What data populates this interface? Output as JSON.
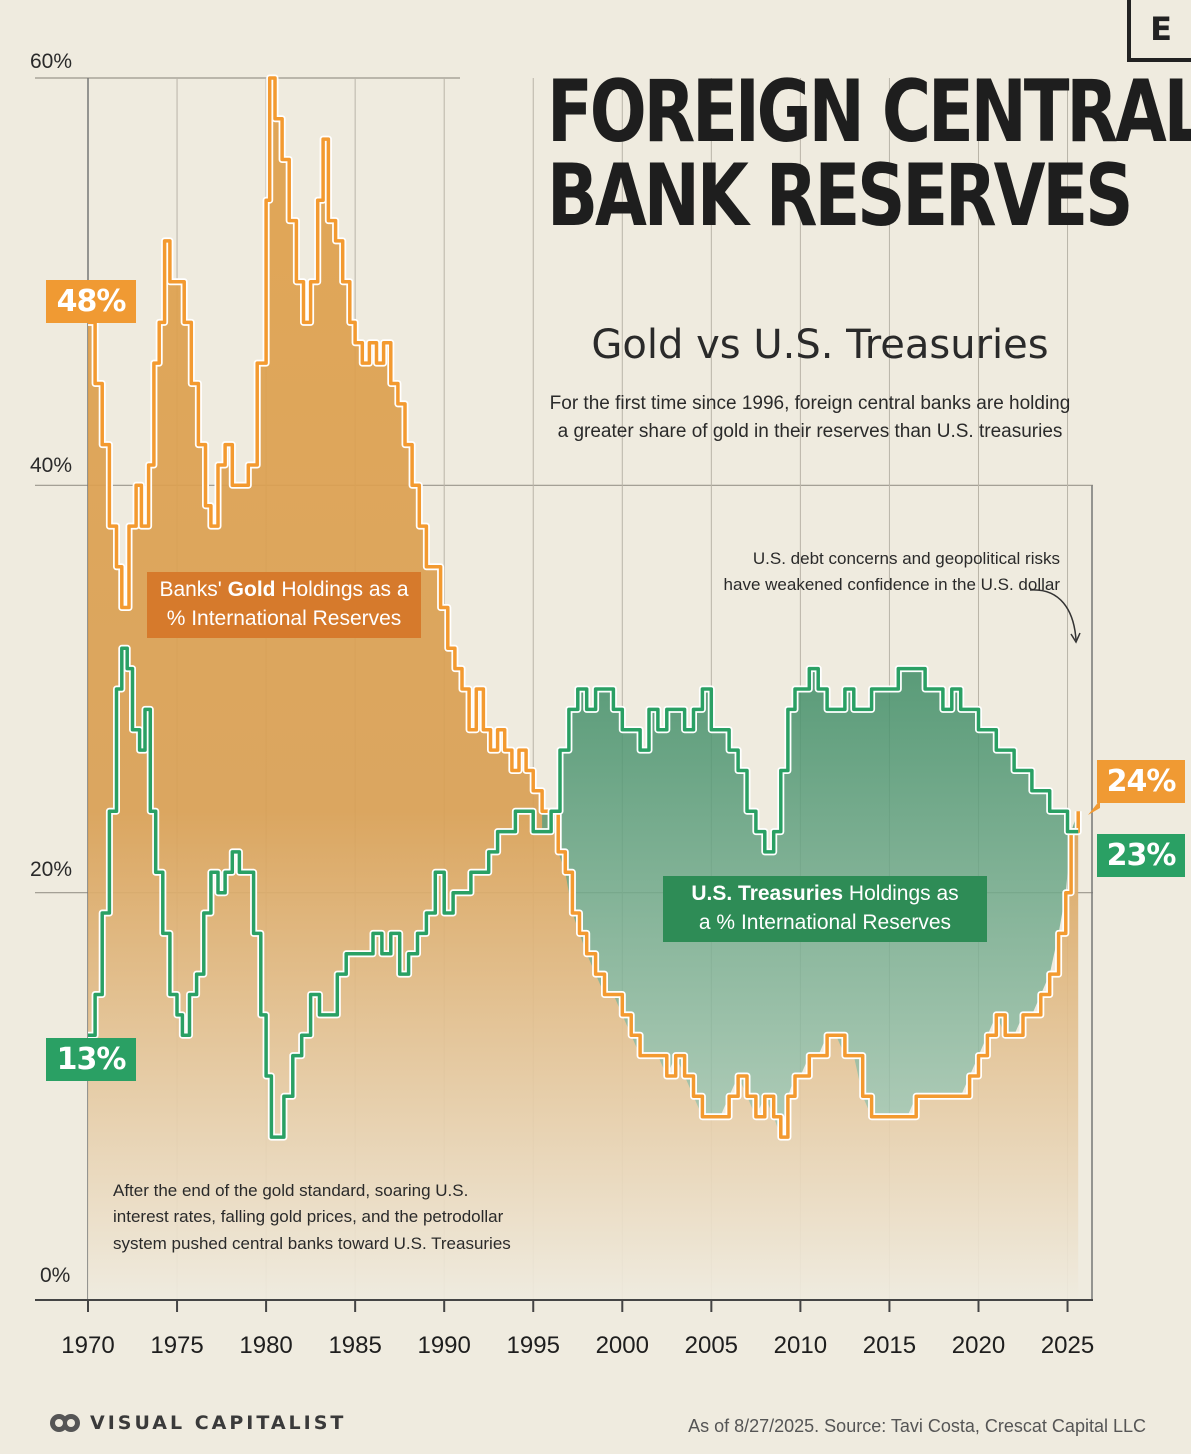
{
  "header": {
    "brand_mark": "E",
    "title_line1": "FOREIGN CENTRAL",
    "title_line2": "BANK RESERVES",
    "subtitle": "Gold vs U.S. Treasuries",
    "description_line1": "For the first time since 1996, foreign central banks are holding",
    "description_line2": "a greater share of gold in their reserves than U.S. treasuries"
  },
  "annotations": {
    "top_line1": "U.S. debt concerns and geopolitical risks",
    "top_line2": "have weakened confidence in the U.S. dollar",
    "bottom_line1": "After the end of the gold standard, soaring U.S.",
    "bottom_line2": "interest rates, falling gold prices, and the petrodollar",
    "bottom_line3": "system pushed central banks toward U.S. Treasuries"
  },
  "labels": {
    "gold_pre": "Banks' ",
    "gold_bold": "Gold",
    "gold_post": " Holdings as a",
    "gold_line2": "% International Reserves",
    "treas_bold": "U.S. Treasuries",
    "treas_post": " Holdings as",
    "treas_line2": "a % International Reserves"
  },
  "badges": {
    "gold_start": "48%",
    "treas_start": "13%",
    "gold_end": "24%",
    "treas_end": "23%"
  },
  "footer": {
    "brand": "VISUAL CAPITALIST",
    "source": "As of 8/27/2025. Source: Tavi Costa, Crescat Capital LLC"
  },
  "colors": {
    "gold": "#f39a30",
    "treasuries": "#2aa064",
    "gold_fill": "#d39a4e",
    "treasuries_fill": "#5f9f7e",
    "background": "#efebdf"
  },
  "chart_data": {
    "type": "line",
    "title": "FOREIGN CENTRAL BANK RESERVES",
    "subtitle": "Gold vs U.S. Treasuries",
    "xlim": [
      1970,
      2025.7
    ],
    "ylim": [
      0,
      60
    ],
    "xticks": [
      "1970",
      "1975",
      "1980",
      "1985",
      "1990",
      "1995",
      "2000",
      "2005",
      "2010",
      "2015",
      "2020",
      "2025"
    ],
    "yticks": [
      "0%",
      "20%",
      "40%",
      "60%"
    ],
    "grid": true,
    "series": [
      {
        "name": "Banks' Gold Holdings as a % International Reserves",
        "color": "#f39a30",
        "points": [
          [
            1970,
            48
          ],
          [
            1970.4,
            45
          ],
          [
            1970.8,
            42
          ],
          [
            1971.2,
            38
          ],
          [
            1971.6,
            36
          ],
          [
            1971.9,
            34
          ],
          [
            1972.3,
            38
          ],
          [
            1972.7,
            40
          ],
          [
            1973.0,
            38
          ],
          [
            1973.4,
            41
          ],
          [
            1973.7,
            46
          ],
          [
            1974.0,
            48
          ],
          [
            1974.3,
            52
          ],
          [
            1974.6,
            50
          ],
          [
            1975.0,
            50
          ],
          [
            1975.4,
            48
          ],
          [
            1975.8,
            45
          ],
          [
            1976.2,
            42
          ],
          [
            1976.6,
            39
          ],
          [
            1976.9,
            38
          ],
          [
            1977.3,
            41
          ],
          [
            1977.7,
            42
          ],
          [
            1978.1,
            40
          ],
          [
            1978.5,
            40
          ],
          [
            1979.0,
            41
          ],
          [
            1979.5,
            46
          ],
          [
            1980.0,
            54
          ],
          [
            1980.2,
            60
          ],
          [
            1980.5,
            58
          ],
          [
            1980.9,
            56
          ],
          [
            1981.3,
            53
          ],
          [
            1981.7,
            50
          ],
          [
            1982.1,
            48
          ],
          [
            1982.5,
            50
          ],
          [
            1982.9,
            54
          ],
          [
            1983.2,
            57
          ],
          [
            1983.5,
            53
          ],
          [
            1983.9,
            52
          ],
          [
            1984.3,
            50
          ],
          [
            1984.7,
            48
          ],
          [
            1985.0,
            47
          ],
          [
            1985.4,
            46
          ],
          [
            1985.8,
            47
          ],
          [
            1986.2,
            46
          ],
          [
            1986.6,
            47
          ],
          [
            1987.0,
            45
          ],
          [
            1987.4,
            44
          ],
          [
            1987.8,
            42
          ],
          [
            1988.2,
            40
          ],
          [
            1988.6,
            38
          ],
          [
            1989.0,
            36
          ],
          [
            1989.4,
            36
          ],
          [
            1989.8,
            34
          ],
          [
            1990.2,
            32
          ],
          [
            1990.6,
            31
          ],
          [
            1991.0,
            30
          ],
          [
            1991.4,
            28
          ],
          [
            1991.8,
            30
          ],
          [
            1992.2,
            28
          ],
          [
            1992.6,
            27
          ],
          [
            1993.0,
            28
          ],
          [
            1993.4,
            27
          ],
          [
            1993.8,
            26
          ],
          [
            1994.2,
            27
          ],
          [
            1994.6,
            26
          ],
          [
            1995.0,
            25
          ],
          [
            1995.5,
            24
          ],
          [
            1996.0,
            24
          ],
          [
            1996.4,
            22
          ],
          [
            1996.8,
            21
          ],
          [
            1997.2,
            19
          ],
          [
            1997.6,
            18
          ],
          [
            1998.0,
            17
          ],
          [
            1998.5,
            16
          ],
          [
            1999.0,
            15
          ],
          [
            1999.5,
            15
          ],
          [
            2000.0,
            14
          ],
          [
            2000.5,
            13
          ],
          [
            2001.0,
            12
          ],
          [
            2001.5,
            12
          ],
          [
            2002.0,
            12
          ],
          [
            2002.5,
            11
          ],
          [
            2003.0,
            12
          ],
          [
            2003.5,
            11
          ],
          [
            2004.0,
            10
          ],
          [
            2004.5,
            9
          ],
          [
            2005.0,
            9
          ],
          [
            2005.5,
            9
          ],
          [
            2006.0,
            10
          ],
          [
            2006.5,
            11
          ],
          [
            2007.0,
            10
          ],
          [
            2007.5,
            9
          ],
          [
            2008.0,
            10
          ],
          [
            2008.5,
            9
          ],
          [
            2008.9,
            8
          ],
          [
            2009.3,
            10
          ],
          [
            2009.7,
            11
          ],
          [
            2010.0,
            11
          ],
          [
            2010.5,
            12
          ],
          [
            2011.0,
            12
          ],
          [
            2011.5,
            13
          ],
          [
            2012.0,
            13
          ],
          [
            2012.5,
            12
          ],
          [
            2013.0,
            12
          ],
          [
            2013.5,
            10
          ],
          [
            2014.0,
            9
          ],
          [
            2014.5,
            9
          ],
          [
            2015.0,
            9
          ],
          [
            2015.5,
            9
          ],
          [
            2016.0,
            9
          ],
          [
            2016.5,
            10
          ],
          [
            2017.0,
            10
          ],
          [
            2017.5,
            10
          ],
          [
            2018.0,
            10
          ],
          [
            2018.5,
            10
          ],
          [
            2019.0,
            10
          ],
          [
            2019.5,
            11
          ],
          [
            2020.0,
            12
          ],
          [
            2020.5,
            13
          ],
          [
            2021.0,
            14
          ],
          [
            2021.5,
            13
          ],
          [
            2022.0,
            13
          ],
          [
            2022.5,
            14
          ],
          [
            2023.0,
            14
          ],
          [
            2023.5,
            15
          ],
          [
            2024.0,
            16
          ],
          [
            2024.5,
            18
          ],
          [
            2024.9,
            20
          ],
          [
            2025.2,
            23
          ],
          [
            2025.6,
            24
          ]
        ]
      },
      {
        "name": "U.S. Treasuries Holdings as a % International Reserves",
        "color": "#2aa064",
        "points": [
          [
            1970,
            13
          ],
          [
            1970.4,
            15
          ],
          [
            1970.8,
            19
          ],
          [
            1971.2,
            24
          ],
          [
            1971.6,
            30
          ],
          [
            1971.9,
            32
          ],
          [
            1972.2,
            31
          ],
          [
            1972.5,
            28
          ],
          [
            1972.9,
            27
          ],
          [
            1973.2,
            29
          ],
          [
            1973.5,
            24
          ],
          [
            1973.8,
            21
          ],
          [
            1974.2,
            18
          ],
          [
            1974.6,
            15
          ],
          [
            1975.0,
            14
          ],
          [
            1975.3,
            13
          ],
          [
            1975.7,
            15
          ],
          [
            1976.1,
            16
          ],
          [
            1976.5,
            19
          ],
          [
            1976.9,
            21
          ],
          [
            1977.3,
            20
          ],
          [
            1977.7,
            21
          ],
          [
            1978.1,
            22
          ],
          [
            1978.5,
            21
          ],
          [
            1978.9,
            21
          ],
          [
            1979.3,
            18
          ],
          [
            1979.7,
            14
          ],
          [
            1980.0,
            11
          ],
          [
            1980.3,
            8
          ],
          [
            1980.7,
            8
          ],
          [
            1981.0,
            10
          ],
          [
            1981.5,
            12
          ],
          [
            1982.0,
            13
          ],
          [
            1982.5,
            15
          ],
          [
            1983.0,
            14
          ],
          [
            1983.5,
            14
          ],
          [
            1984.0,
            16
          ],
          [
            1984.5,
            17
          ],
          [
            1985.0,
            17
          ],
          [
            1985.5,
            17
          ],
          [
            1986.0,
            18
          ],
          [
            1986.5,
            17
          ],
          [
            1987.0,
            18
          ],
          [
            1987.5,
            16
          ],
          [
            1988.0,
            17
          ],
          [
            1988.5,
            18
          ],
          [
            1989.0,
            19
          ],
          [
            1989.5,
            21
          ],
          [
            1990.0,
            19
          ],
          [
            1990.5,
            20
          ],
          [
            1991.0,
            20
          ],
          [
            1991.5,
            21
          ],
          [
            1992.0,
            21
          ],
          [
            1992.5,
            22
          ],
          [
            1993.0,
            23
          ],
          [
            1993.5,
            23
          ],
          [
            1994.0,
            24
          ],
          [
            1994.5,
            24
          ],
          [
            1995.0,
            23
          ],
          [
            1995.5,
            23
          ],
          [
            1996.0,
            24
          ],
          [
            1996.5,
            27
          ],
          [
            1997.0,
            29
          ],
          [
            1997.5,
            30
          ],
          [
            1998.0,
            29
          ],
          [
            1998.5,
            30
          ],
          [
            1999.0,
            30
          ],
          [
            1999.5,
            29
          ],
          [
            2000.0,
            28
          ],
          [
            2000.5,
            28
          ],
          [
            2001.0,
            27
          ],
          [
            2001.5,
            29
          ],
          [
            2002.0,
            28
          ],
          [
            2002.5,
            29
          ],
          [
            2003.0,
            29
          ],
          [
            2003.5,
            28
          ],
          [
            2004.0,
            29
          ],
          [
            2004.5,
            30
          ],
          [
            2005.0,
            28
          ],
          [
            2005.5,
            28
          ],
          [
            2006.0,
            27
          ],
          [
            2006.5,
            26
          ],
          [
            2007.0,
            24
          ],
          [
            2007.5,
            23
          ],
          [
            2008.0,
            22
          ],
          [
            2008.5,
            23
          ],
          [
            2008.9,
            26
          ],
          [
            2009.3,
            29
          ],
          [
            2009.7,
            30
          ],
          [
            2010.0,
            30
          ],
          [
            2010.5,
            31
          ],
          [
            2011.0,
            30
          ],
          [
            2011.5,
            29
          ],
          [
            2012.0,
            29
          ],
          [
            2012.5,
            30
          ],
          [
            2013.0,
            29
          ],
          [
            2013.5,
            29
          ],
          [
            2014.0,
            30
          ],
          [
            2014.5,
            30
          ],
          [
            2015.0,
            30
          ],
          [
            2015.5,
            31
          ],
          [
            2016.0,
            31
          ],
          [
            2016.5,
            31
          ],
          [
            2017.0,
            30
          ],
          [
            2017.5,
            30
          ],
          [
            2018.0,
            29
          ],
          [
            2018.5,
            30
          ],
          [
            2019.0,
            29
          ],
          [
            2019.5,
            29
          ],
          [
            2020.0,
            28
          ],
          [
            2020.5,
            28
          ],
          [
            2021.0,
            27
          ],
          [
            2021.5,
            27
          ],
          [
            2022.0,
            26
          ],
          [
            2022.5,
            26
          ],
          [
            2023.0,
            25
          ],
          [
            2023.5,
            25
          ],
          [
            2024.0,
            24
          ],
          [
            2024.5,
            24
          ],
          [
            2025.0,
            23
          ],
          [
            2025.6,
            23
          ]
        ]
      }
    ]
  }
}
